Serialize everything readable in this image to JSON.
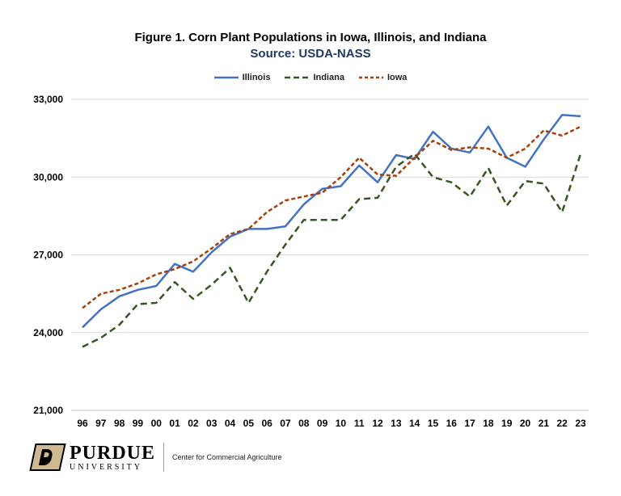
{
  "chart_data": {
    "type": "line",
    "title": "Figure 1.  Corn Plant Populations in Iowa, Illinois, and Indiana",
    "subtitle": "Source: USDA-NASS",
    "xlabel": "",
    "ylabel": "",
    "categories": [
      "96",
      "97",
      "98",
      "99",
      "00",
      "01",
      "02",
      "03",
      "04",
      "05",
      "06",
      "07",
      "08",
      "09",
      "10",
      "11",
      "12",
      "13",
      "14",
      "15",
      "16",
      "17",
      "18",
      "19",
      "20",
      "21",
      "22",
      "23"
    ],
    "y_ticks": [
      "21,000",
      "24,000",
      "27,000",
      "30,000",
      "33,000"
    ],
    "ylim": [
      21000,
      33000
    ],
    "grid": "horizontal",
    "legend_position": "top-center",
    "series": [
      {
        "name": "Illinois",
        "color": "#4472C4",
        "style": "solid",
        "values": [
          24200,
          24900,
          25400,
          25650,
          25800,
          26650,
          26350,
          27100,
          27700,
          28000,
          28000,
          28100,
          28950,
          29550,
          29650,
          30450,
          29800,
          30850,
          30700,
          31750,
          31100,
          30950,
          31950,
          30750,
          30400,
          31450,
          32400,
          32350
        ]
      },
      {
        "name": "Indiana",
        "color": "#375623",
        "style": "dashed",
        "values": [
          23450,
          23800,
          24300,
          25100,
          25150,
          25950,
          25300,
          25850,
          26500,
          25150,
          26350,
          27400,
          28350,
          28350,
          28350,
          29150,
          29200,
          30400,
          30900,
          30000,
          29800,
          29250,
          30350,
          28900,
          29850,
          29750,
          28650,
          30900
        ]
      },
      {
        "name": "Iowa",
        "color": "#A5400E",
        "style": "dashed",
        "values": [
          24950,
          25500,
          25650,
          25900,
          26250,
          26450,
          26750,
          27250,
          27800,
          28000,
          28650,
          29100,
          29250,
          29400,
          30000,
          30750,
          30100,
          30050,
          30750,
          31400,
          31050,
          31150,
          31100,
          30750,
          31100,
          31800,
          31600,
          31950
        ]
      }
    ]
  },
  "footer": {
    "logo_name": "PURDUE",
    "logo_sub": "UNIVERSITY",
    "logo_mark": "P",
    "center": "Center for Commercial Agriculture"
  },
  "colors": {
    "subtitle": "#1F3864",
    "grid": "#D9D9D9",
    "logo_gold": "#CFB991"
  }
}
